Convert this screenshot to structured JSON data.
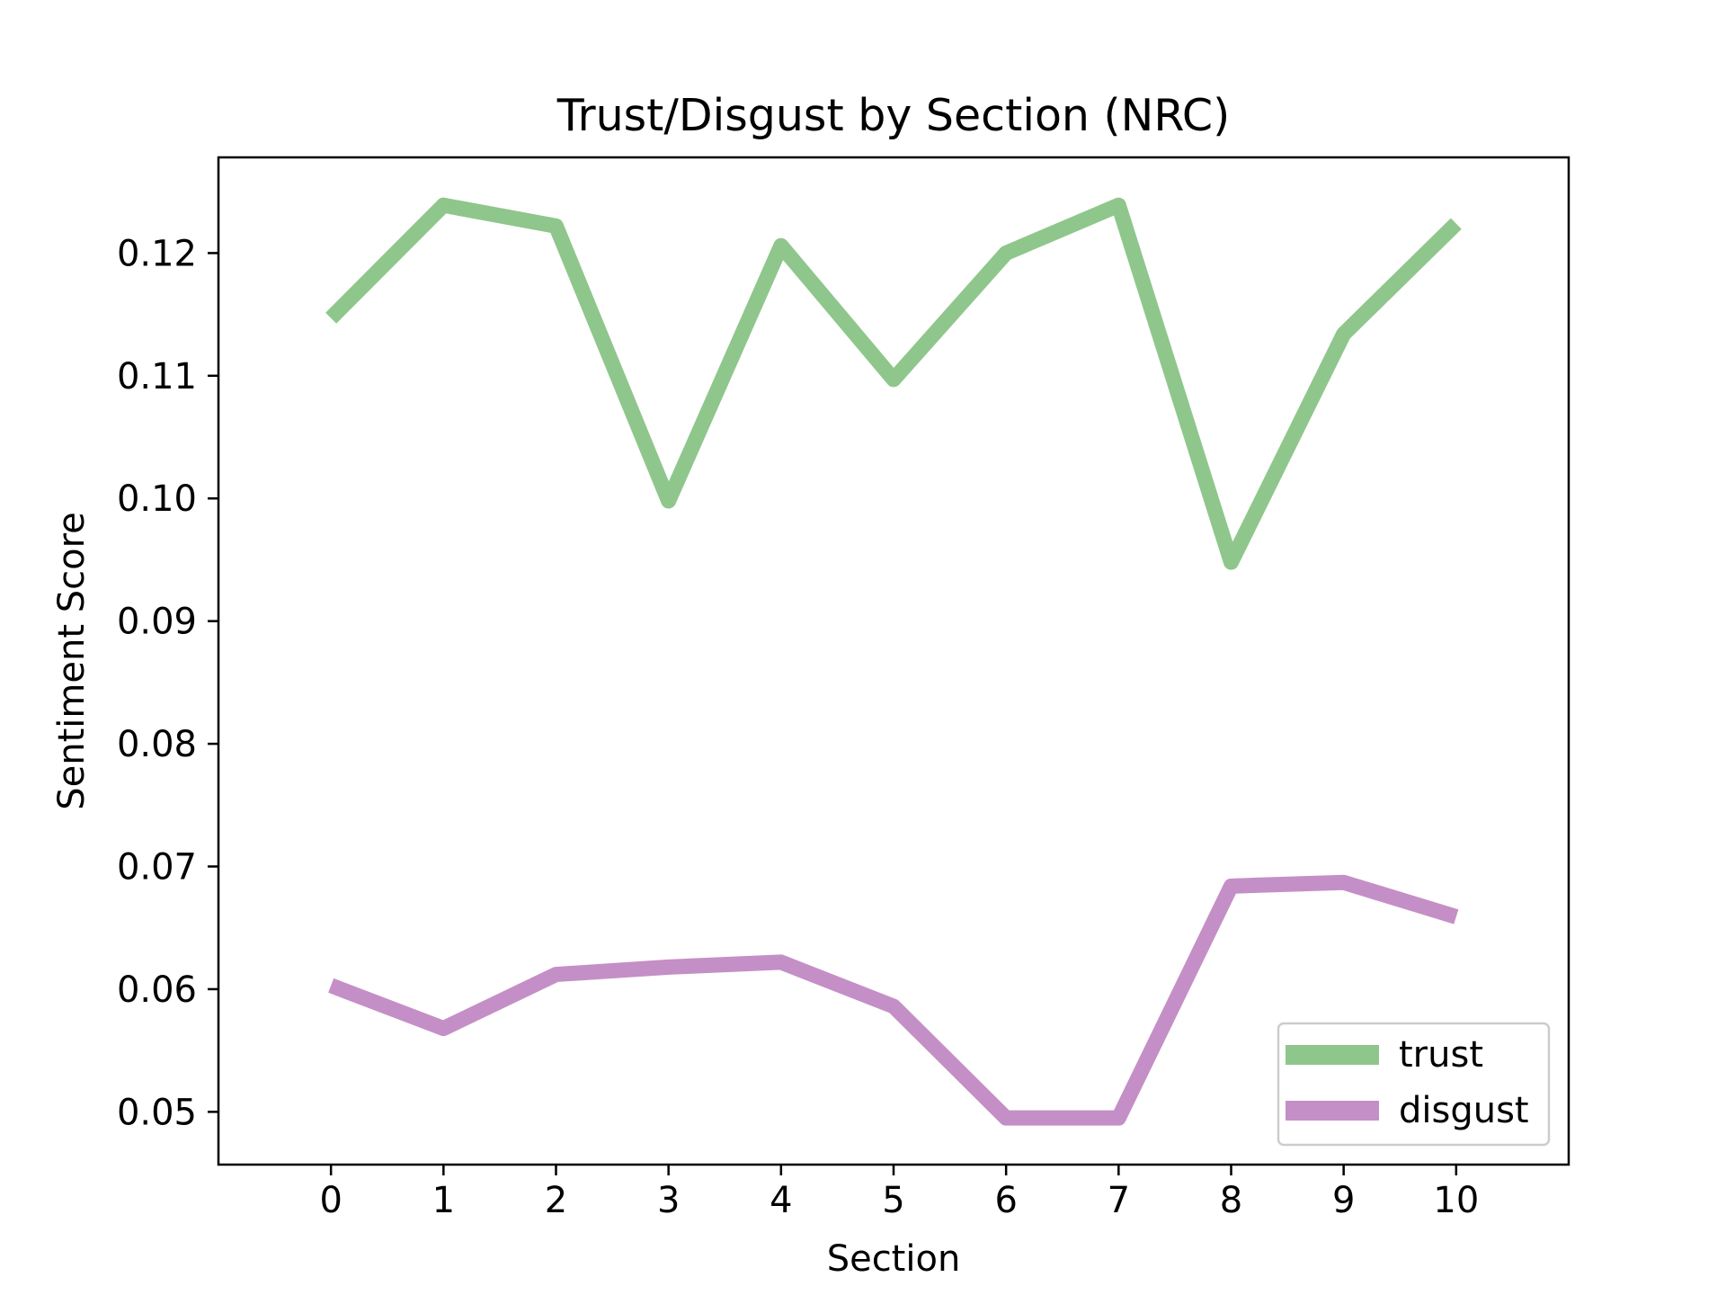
{
  "chart_data": {
    "type": "line",
    "title": "Trust/Disgust by Section (NRC)",
    "xlabel": "Section",
    "ylabel": "Sentiment Score",
    "x": [
      0,
      1,
      2,
      3,
      4,
      5,
      6,
      7,
      8,
      9,
      10
    ],
    "x_ticks": [
      "0",
      "1",
      "2",
      "3",
      "4",
      "5",
      "6",
      "7",
      "8",
      "9",
      "10"
    ],
    "xlim": [
      -1,
      11
    ],
    "y_ticks": [
      "0.05",
      "0.06",
      "0.07",
      "0.08",
      "0.09",
      "0.10",
      "0.11",
      "0.12"
    ],
    "ylim": [
      0.0457,
      0.1278
    ],
    "grid": false,
    "legend_position": "lower right",
    "series": [
      {
        "name": "trust",
        "color": "#8fc68c",
        "values": [
          0.1147,
          0.1239,
          0.1222,
          0.0998,
          0.1206,
          0.1097,
          0.12,
          0.1239,
          0.0948,
          0.1134,
          0.1224
        ]
      },
      {
        "name": "disgust",
        "color": "#c48fc6",
        "values": [
          0.0603,
          0.0568,
          0.0612,
          0.0618,
          0.0622,
          0.0586,
          0.0495,
          0.0495,
          0.0684,
          0.0687,
          0.0659
        ]
      }
    ]
  }
}
